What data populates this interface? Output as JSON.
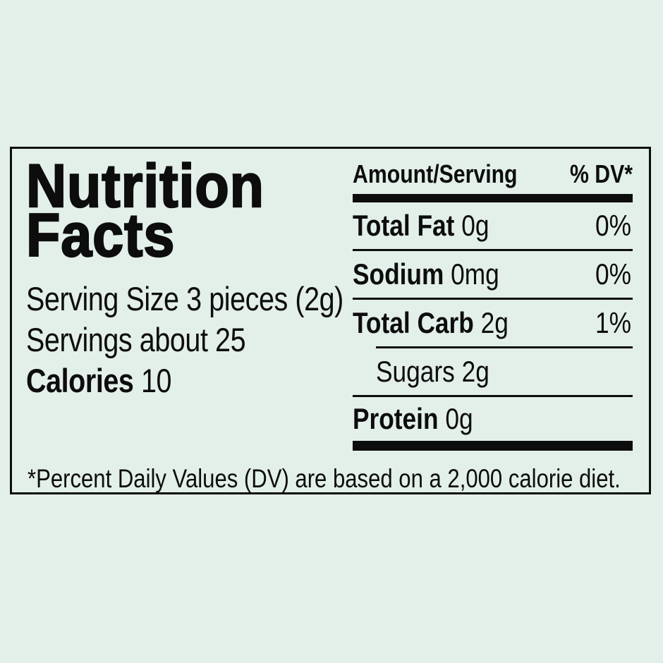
{
  "colors": {
    "background": "#e3f0e9",
    "ink": "#0d0d0d"
  },
  "label": {
    "title": {
      "line1": "Nutrition",
      "line2": "Facts"
    },
    "serving_size": "Serving Size 3 pieces (2g)",
    "servings": "Servings about 25",
    "calories": {
      "label": "Calories",
      "value": "10"
    },
    "table": {
      "col_amount": "Amount/Serving",
      "col_dv": "% DV*",
      "rows": [
        {
          "name": "Total Fat",
          "amount": "0g",
          "dv": "0%"
        },
        {
          "name": "Sodium",
          "amount": "0mg",
          "dv": "0%"
        },
        {
          "name": "Total Carb",
          "amount": "2g",
          "dv": "1%"
        },
        {
          "name": "Sugars",
          "amount": "2g",
          "dv": ""
        },
        {
          "name": "Protein",
          "amount": "0g",
          "dv": ""
        }
      ]
    },
    "footnote": "*Percent Daily Values (DV) are based on a 2,000 calorie diet."
  }
}
